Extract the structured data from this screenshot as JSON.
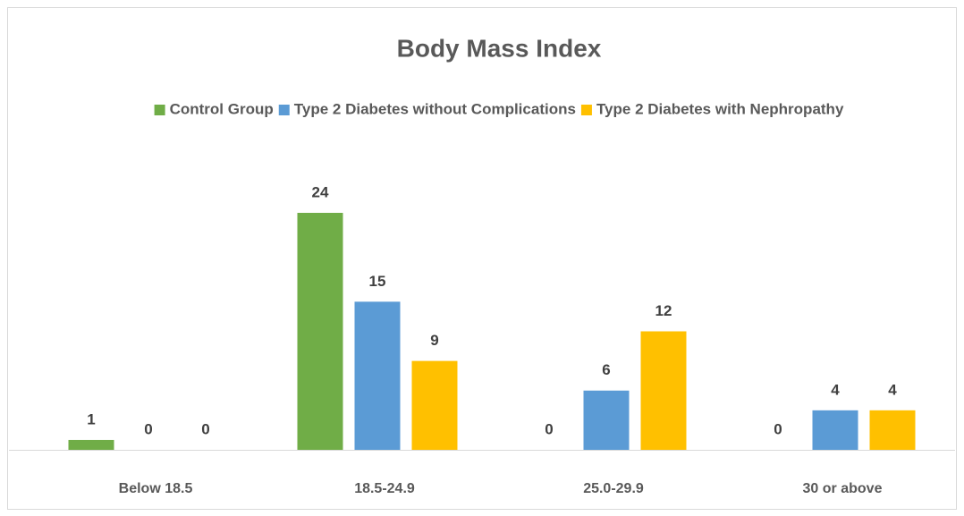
{
  "chart_data": {
    "type": "bar",
    "title": "Body Mass Index",
    "categories": [
      "Below 18.5",
      "18.5-24.9",
      "25.0-29.9",
      "30 or above"
    ],
    "series": [
      {
        "name": "Control Group",
        "color": "#70ad47",
        "values": [
          1,
          24,
          0,
          0
        ]
      },
      {
        "name": "Type 2 Diabetes without Complications",
        "color": "#5b9bd5",
        "values": [
          0,
          15,
          6,
          4
        ]
      },
      {
        "name": "Type 2 Diabetes with Nephropathy",
        "color": "#ffc000",
        "values": [
          0,
          9,
          12,
          4
        ]
      }
    ],
    "legend": "top"
  }
}
